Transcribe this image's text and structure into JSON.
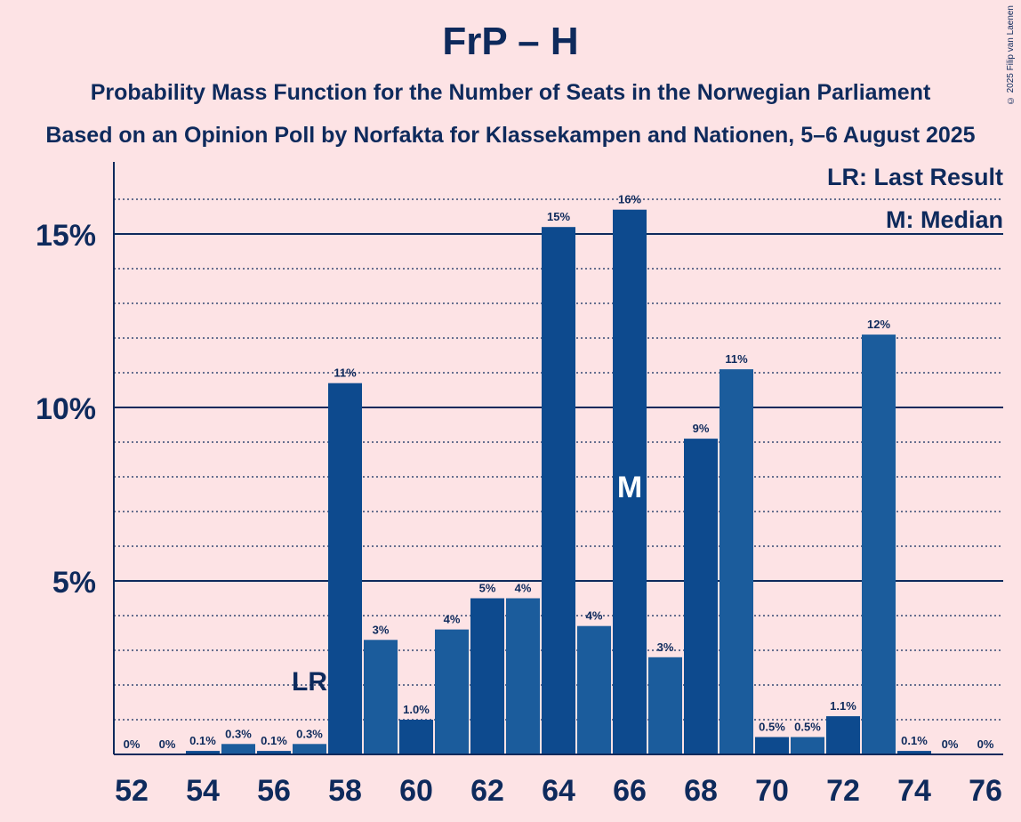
{
  "title": "FrP – H",
  "subtitle1": "Probability Mass Function for the Number of Seats in the Norwegian Parliament",
  "subtitle2": "Based on an Opinion Poll by Norfakta for Klassekampen and Nationen, 5–6 August 2025",
  "copyright": "© 2025 Filip van Laenen",
  "legend": {
    "lr": "LR: Last Result",
    "m": "M: Median"
  },
  "markers": {
    "lr_label": "LR",
    "lr_seat": 57,
    "median_label": "M",
    "median_seat": 66
  },
  "colors": {
    "background": "#fde3e5",
    "bar_dark": "#0d4a8e",
    "bar_light": "#1b5c9c",
    "text": "#0e2a5c"
  },
  "chart_data": {
    "type": "bar",
    "categories": [
      52,
      53,
      54,
      55,
      56,
      57,
      58,
      59,
      60,
      61,
      62,
      63,
      64,
      65,
      66,
      67,
      68,
      69,
      70,
      71,
      72,
      73,
      74,
      75,
      76
    ],
    "values": [
      0,
      0,
      0.1,
      0.3,
      0.1,
      0.3,
      10.7,
      3.3,
      1.0,
      3.6,
      4.5,
      4.5,
      15.2,
      3.7,
      15.7,
      2.8,
      9.1,
      11.1,
      0.5,
      0.5,
      1.1,
      12.1,
      0.1,
      0,
      0
    ],
    "labels": [
      "0%",
      "0%",
      "0.1%",
      "0.3%",
      "0.1%",
      "0.3%",
      "11%",
      "3%",
      "1.0%",
      "4%",
      "5%",
      "4%",
      "15%",
      "4%",
      "16%",
      "3%",
      "9%",
      "11%",
      "0.5%",
      "0.5%",
      "1.1%",
      "12%",
      "0.1%",
      "0%",
      "0%"
    ],
    "x_tick_labels": [
      "52",
      "54",
      "56",
      "58",
      "60",
      "62",
      "64",
      "66",
      "68",
      "70",
      "72",
      "74",
      "76"
    ],
    "y_ticks": [
      {
        "value": 5,
        "label": "5%"
      },
      {
        "value": 10,
        "label": "10%"
      },
      {
        "value": 15,
        "label": "15%"
      }
    ],
    "ylim": [
      0,
      17
    ]
  }
}
